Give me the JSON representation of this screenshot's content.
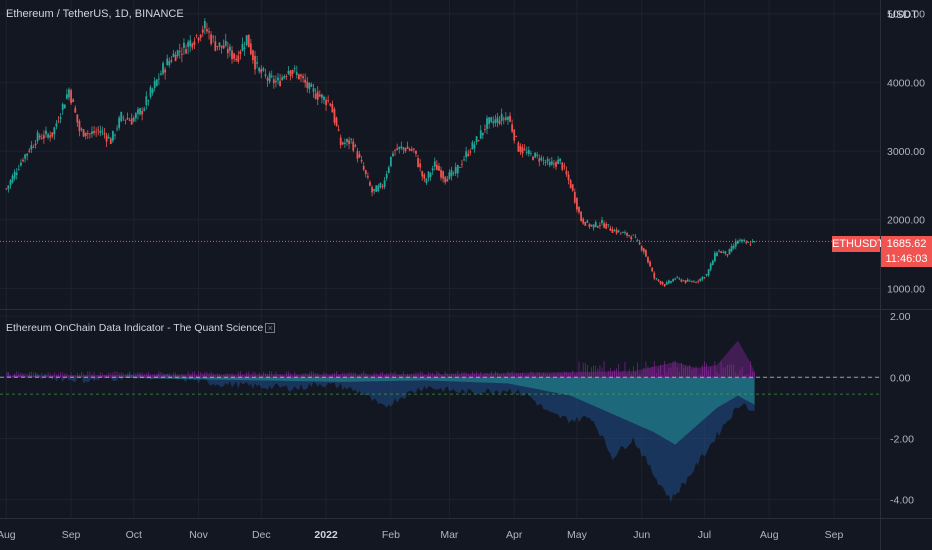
{
  "header": {
    "symbol_title": "Ethereum / TetherUS, 1D, BINANCE",
    "currency": "USDT"
  },
  "price": {
    "symbol_tag": "ETHUSDT",
    "last": "1685.62",
    "countdown": "11:46:03",
    "last_value": 1685.62,
    "tag_color": "#f05350"
  },
  "indicator": {
    "title": "Ethereum OnChain Data Indicator - The Quant Science",
    "close_icon": "close-icon"
  },
  "colors": {
    "background": "#131722",
    "up": "#26a69a",
    "down": "#ef5350",
    "area_fill": "#1f4e8c",
    "teal_fill": "#1f7a86",
    "histogram": "#9c27b0"
  },
  "chart_data": [
    {
      "type": "candlestick",
      "title": "Ethereum / TetherUS, 1D, BINANCE",
      "ylim": [
        700,
        5200
      ],
      "y_ticks": [
        "5000.00",
        "4000.00",
        "3000.00",
        "2000.00",
        "1000.00"
      ],
      "x_ticks": [
        "Aug",
        "Sep",
        "Oct",
        "Nov",
        "Dec",
        "2022",
        "Feb",
        "Mar",
        "Apr",
        "May",
        "Jun",
        "Jul",
        "Aug",
        "Sep"
      ],
      "x_tick_values": [
        0,
        31,
        61,
        92,
        122,
        153,
        184,
        212,
        243,
        273,
        304,
        334,
        365,
        396
      ],
      "x_range": [
        -3,
        418
      ],
      "anchors": [
        [
          0,
          2450
        ],
        [
          8,
          2900
        ],
        [
          15,
          3200
        ],
        [
          22,
          3250
        ],
        [
          30,
          3900
        ],
        [
          35,
          3300
        ],
        [
          40,
          3250
        ],
        [
          45,
          3300
        ],
        [
          50,
          3150
        ],
        [
          55,
          3500
        ],
        [
          60,
          3450
        ],
        [
          65,
          3600
        ],
        [
          70,
          3900
        ],
        [
          75,
          4200
        ],
        [
          80,
          4400
        ],
        [
          85,
          4500
        ],
        [
          90,
          4650
        ],
        [
          95,
          4800
        ],
        [
          100,
          4550
        ],
        [
          105,
          4500
        ],
        [
          110,
          4350
        ],
        [
          115,
          4650
        ],
        [
          120,
          4200
        ],
        [
          125,
          4050
        ],
        [
          130,
          4000
        ],
        [
          135,
          4200
        ],
        [
          140,
          4100
        ],
        [
          145,
          3900
        ],
        [
          150,
          3800
        ],
        [
          155,
          3700
        ],
        [
          160,
          3100
        ],
        [
          165,
          3150
        ],
        [
          170,
          2800
        ],
        [
          175,
          2400
        ],
        [
          180,
          2500
        ],
        [
          185,
          3000
        ],
        [
          190,
          3050
        ],
        [
          195,
          3000
        ],
        [
          200,
          2550
        ],
        [
          205,
          2800
        ],
        [
          210,
          2600
        ],
        [
          215,
          2700
        ],
        [
          220,
          2950
        ],
        [
          225,
          3150
        ],
        [
          230,
          3400
        ],
        [
          235,
          3450
        ],
        [
          240,
          3500
        ],
        [
          245,
          3050
        ],
        [
          250,
          2950
        ],
        [
          255,
          2900
        ],
        [
          260,
          2800
        ],
        [
          265,
          2850
        ],
        [
          270,
          2500
        ],
        [
          275,
          2000
        ],
        [
          280,
          1900
        ],
        [
          285,
          1950
        ],
        [
          290,
          1850
        ],
        [
          295,
          1800
        ],
        [
          300,
          1750
        ],
        [
          305,
          1550
        ],
        [
          310,
          1150
        ],
        [
          315,
          1050
        ],
        [
          320,
          1150
        ],
        [
          325,
          1100
        ],
        [
          330,
          1100
        ],
        [
          335,
          1200
        ],
        [
          340,
          1550
        ],
        [
          345,
          1500
        ],
        [
          350,
          1700
        ],
        [
          355,
          1650
        ],
        [
          358,
          1685.62
        ]
      ],
      "last_price": 1685.62
    },
    {
      "type": "area",
      "title": "Ethereum OnChain Data Indicator - The Quant Science",
      "ylim": [
        -4.6,
        2.2
      ],
      "y_ticks": [
        "2.00",
        "0.00",
        "-2.00",
        "-4.00"
      ],
      "reference_lines": [
        0.0,
        -0.55
      ],
      "series": [
        {
          "values": [
            [
              0,
              0.1
            ],
            [
              20,
              0.0
            ],
            [
              40,
              -0.1
            ],
            [
              60,
              0.05
            ],
            [
              80,
              0.0
            ],
            [
              100,
              -0.2
            ],
            [
              120,
              -0.3
            ],
            [
              140,
              -0.35
            ],
            [
              150,
              -0.2
            ],
            [
              160,
              -0.3
            ],
            [
              170,
              -0.5
            ],
            [
              180,
              -1.0
            ],
            [
              190,
              -0.6
            ],
            [
              200,
              -0.3
            ],
            [
              210,
              -0.4
            ],
            [
              220,
              -0.5
            ],
            [
              240,
              -0.4
            ],
            [
              250,
              -0.6
            ],
            [
              260,
              -1.2
            ],
            [
              270,
              -1.4
            ],
            [
              280,
              -1.3
            ],
            [
              290,
              -2.6
            ],
            [
              300,
              -2.0
            ],
            [
              310,
              -3.2
            ],
            [
              318,
              -4.0
            ],
            [
              325,
              -3.4
            ],
            [
              335,
              -2.4
            ],
            [
              345,
              -1.4
            ],
            [
              352,
              -0.8
            ],
            [
              358,
              -1.2
            ]
          ]
        },
        {
          "values": [
            [
              0,
              0.0
            ],
            [
              40,
              0.0
            ],
            [
              80,
              -0.05
            ],
            [
              120,
              -0.1
            ],
            [
              160,
              -0.15
            ],
            [
              200,
              -0.1
            ],
            [
              240,
              -0.2
            ],
            [
              270,
              -0.6
            ],
            [
              290,
              -1.2
            ],
            [
              310,
              -1.8
            ],
            [
              320,
              -2.2
            ],
            [
              330,
              -1.6
            ],
            [
              340,
              -1.0
            ],
            [
              350,
              -0.6
            ],
            [
              358,
              -0.9
            ]
          ]
        },
        {
          "values": [
            [
              0,
              0.05
            ],
            [
              100,
              0.1
            ],
            [
              200,
              0.1
            ],
            [
              300,
              0.2
            ],
            [
              320,
              0.5
            ],
            [
              330,
              0.3
            ],
            [
              340,
              0.4
            ],
            [
              350,
              1.2
            ],
            [
              355,
              0.6
            ],
            [
              358,
              0.2
            ]
          ]
        }
      ]
    }
  ]
}
